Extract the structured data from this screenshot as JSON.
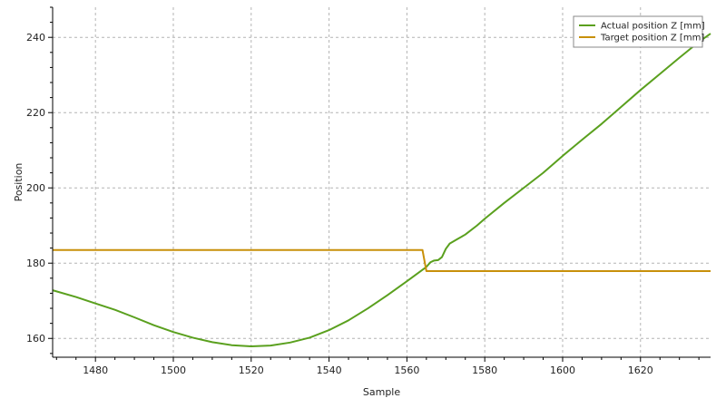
{
  "chart_data": {
    "type": "line",
    "title": "",
    "xlabel": "Sample",
    "ylabel": "Position",
    "xlim": [
      1469,
      1638
    ],
    "ylim": [
      155,
      248
    ],
    "x_ticks": [
      1480,
      1500,
      1520,
      1540,
      1560,
      1580,
      1600,
      1620
    ],
    "y_ticks": [
      160,
      180,
      200,
      220,
      240
    ],
    "grid": true,
    "legend_position": "top-right",
    "series": [
      {
        "name": "Actual position Z [mm]",
        "color": "#5aa01e",
        "points": [
          [
            1469,
            172.8
          ],
          [
            1475,
            171.0
          ],
          [
            1480,
            169.3
          ],
          [
            1485,
            167.6
          ],
          [
            1490,
            165.6
          ],
          [
            1495,
            163.5
          ],
          [
            1500,
            161.7
          ],
          [
            1505,
            160.2
          ],
          [
            1510,
            159.0
          ],
          [
            1515,
            158.2
          ],
          [
            1520,
            157.9
          ],
          [
            1525,
            158.1
          ],
          [
            1530,
            158.9
          ],
          [
            1535,
            160.2
          ],
          [
            1540,
            162.2
          ],
          [
            1545,
            164.8
          ],
          [
            1550,
            168.0
          ],
          [
            1555,
            171.5
          ],
          [
            1560,
            175.2
          ],
          [
            1565,
            179.0
          ],
          [
            1566,
            180.2
          ],
          [
            1567,
            180.7
          ],
          [
            1568,
            180.8
          ],
          [
            1569,
            181.6
          ],
          [
            1570,
            183.8
          ],
          [
            1571,
            185.2
          ],
          [
            1573,
            186.4
          ],
          [
            1575,
            187.6
          ],
          [
            1578,
            190.0
          ],
          [
            1580,
            191.8
          ],
          [
            1585,
            196.0
          ],
          [
            1590,
            200.0
          ],
          [
            1595,
            204.0
          ],
          [
            1600,
            208.5
          ],
          [
            1605,
            212.8
          ],
          [
            1610,
            217.0
          ],
          [
            1615,
            221.5
          ],
          [
            1620,
            226.0
          ],
          [
            1625,
            230.3
          ],
          [
            1630,
            234.6
          ],
          [
            1635,
            238.8
          ],
          [
            1638,
            241.0
          ]
        ]
      },
      {
        "name": "Target position Z [mm]",
        "color": "#c8900a",
        "points": [
          [
            1469,
            183.5
          ],
          [
            1564,
            183.5
          ],
          [
            1565,
            177.9
          ],
          [
            1638,
            177.9
          ]
        ]
      }
    ]
  }
}
